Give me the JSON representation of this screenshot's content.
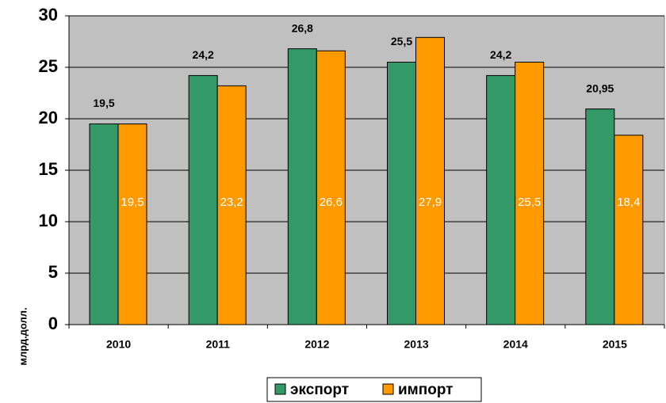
{
  "chart_data": {
    "type": "bar",
    "y_label": "млрд.долл.",
    "categories": [
      "2010",
      "2011",
      "2012",
      "2013",
      "2014",
      "2015"
    ],
    "series": [
      {
        "name": "экспорт",
        "color": "#339966",
        "values": [
          19.5,
          24.2,
          26.8,
          25.5,
          24.2,
          20.95
        ],
        "value_labels": [
          "19,5",
          "24,2",
          "26,8",
          "25,5",
          "24,2",
          "20,95"
        ]
      },
      {
        "name": "импорт",
        "color": "#ff9900",
        "values": [
          19.5,
          23.2,
          26.6,
          27.9,
          25.5,
          18.4
        ],
        "value_labels": [
          "19,5",
          "23,2",
          "26,6",
          "27,9",
          "25,5",
          "18,4"
        ]
      }
    ],
    "ylim": [
      0,
      30
    ],
    "yticks": [
      0,
      5,
      10,
      15,
      20,
      25,
      30
    ],
    "grid": true,
    "background": "#c0c0c0",
    "legend": "bottom"
  }
}
